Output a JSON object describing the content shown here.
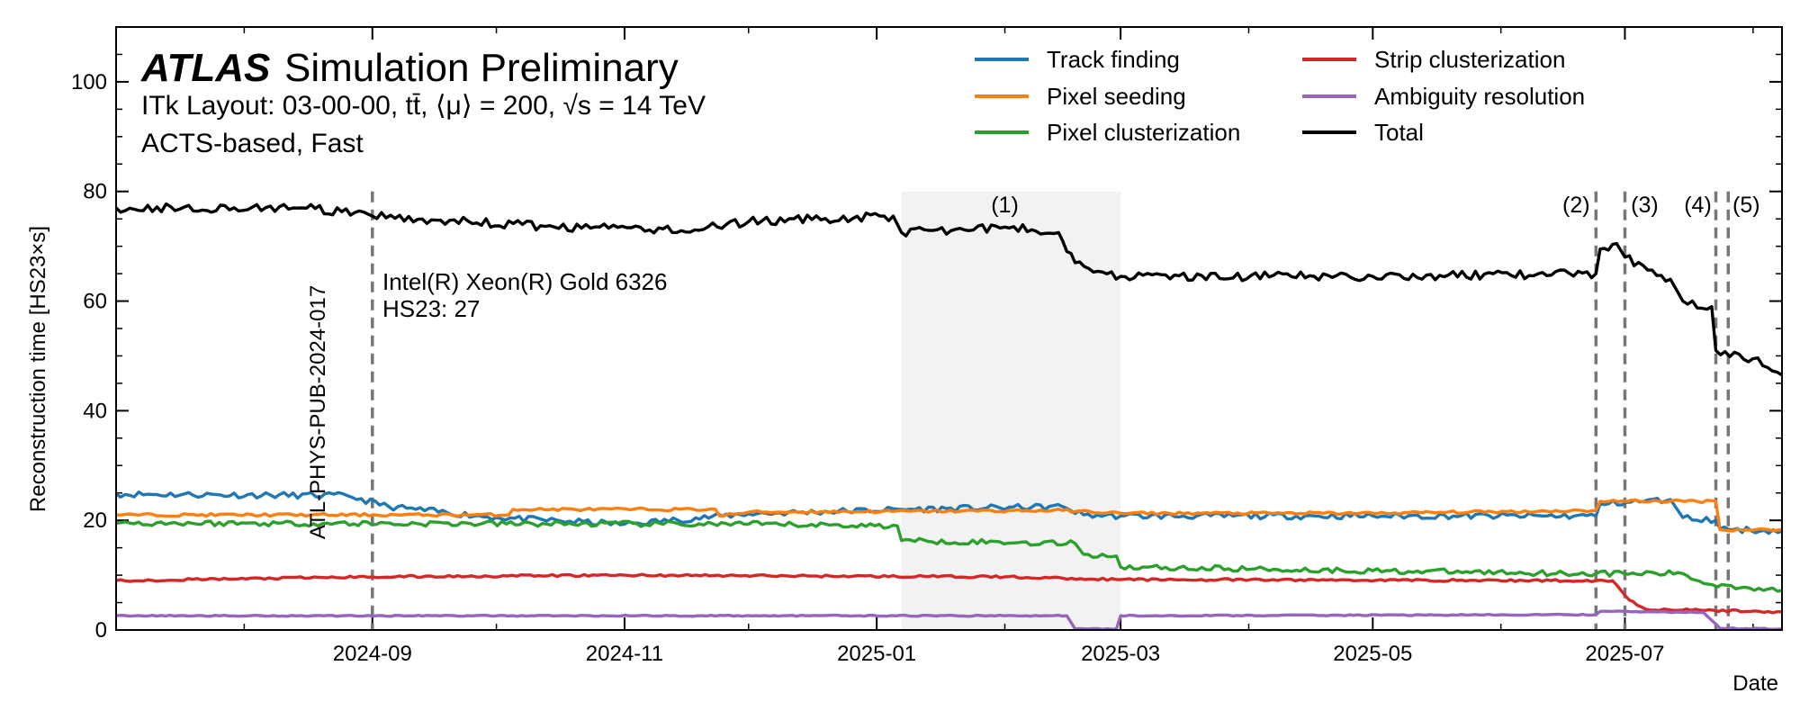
{
  "chart_data": {
    "type": "line",
    "experiment": "ATLAS",
    "status": "Simulation Preliminary",
    "info_line1": "ITk Layout: 03-00-00, tt̄, ⟨μ⟩ = 200, √s = 14 TeV",
    "info_line2": "ACTS-based, Fast",
    "xlabel": "Date",
    "ylabel": "Reconstruction time [HS23×s]",
    "xlim": [
      "2024-07-01",
      "2025-08-08"
    ],
    "ylim": [
      0,
      110
    ],
    "yticks": [
      0,
      20,
      40,
      60,
      80,
      100
    ],
    "xticks": [
      "2024-09",
      "2024-11",
      "2025-01",
      "2025-03",
      "2025-05",
      "2025-07"
    ],
    "x_tick_dates": [
      "2024-09-01",
      "2024-11-01",
      "2025-01-01",
      "2025-03-01",
      "2025-05-01",
      "2025-07-01"
    ],
    "legend_position": "top-right",
    "cpu_line1": "Intel(R) Xeon(R) Gold 6326",
    "cpu_line2": "HS23: 27",
    "reference_label": "ATL-PHYS-PUB-2024-017",
    "reference_date": "2024-09-01",
    "shaded_period": {
      "start": "2025-01-07",
      "end": "2025-03-01",
      "color": "#f2f2f2"
    },
    "markers": [
      {
        "label": "(1)",
        "date": "2025-02-01"
      },
      {
        "label": "(2)",
        "date": "2025-06-24"
      },
      {
        "label": "(3)",
        "date": "2025-07-01"
      },
      {
        "label": "(4)",
        "date": "2025-07-23"
      },
      {
        "label": "(5)",
        "date": "2025-07-26"
      }
    ],
    "series": [
      {
        "name": "Track finding",
        "color": "#1f77b4",
        "points": [
          [
            "2024-07-01",
            24.8
          ],
          [
            "2024-08-26",
            24.5
          ],
          [
            "2024-09-05",
            22.5
          ],
          [
            "2024-10-01",
            20.5
          ],
          [
            "2024-11-01",
            19.3
          ],
          [
            "2024-12-01",
            21.2
          ],
          [
            "2025-01-07",
            22.0
          ],
          [
            "2025-02-15",
            22.5
          ],
          [
            "2025-02-20",
            21.0
          ],
          [
            "2025-03-01",
            20.8
          ],
          [
            "2025-05-01",
            20.8
          ],
          [
            "2025-06-24",
            20.8
          ],
          [
            "2025-06-25",
            23.0
          ],
          [
            "2025-07-12",
            23.8
          ],
          [
            "2025-07-15",
            20.5
          ],
          [
            "2025-07-23",
            20.0
          ],
          [
            "2025-07-24",
            18.5
          ],
          [
            "2025-08-08",
            18.0
          ]
        ]
      },
      {
        "name": "Pixel seeding",
        "color": "#ff7f0e",
        "points": [
          [
            "2024-07-01",
            21.0
          ],
          [
            "2024-10-04",
            21.0
          ],
          [
            "2024-10-05",
            22.0
          ],
          [
            "2024-11-23",
            22.0
          ],
          [
            "2024-11-24",
            20.8
          ],
          [
            "2024-12-01",
            21.5
          ],
          [
            "2025-02-15",
            21.8
          ],
          [
            "2025-03-01",
            21.3
          ],
          [
            "2025-05-01",
            21.3
          ],
          [
            "2025-06-24",
            21.8
          ],
          [
            "2025-06-25",
            23.5
          ],
          [
            "2025-07-23",
            23.5
          ],
          [
            "2025-07-24",
            18.3
          ],
          [
            "2025-08-08",
            18.3
          ]
        ]
      },
      {
        "name": "Pixel clusterization",
        "color": "#2ca02c",
        "points": [
          [
            "2024-07-01",
            19.5
          ],
          [
            "2024-12-01",
            19.3
          ],
          [
            "2025-01-06",
            19.0
          ],
          [
            "2025-01-07",
            16.3
          ],
          [
            "2025-02-18",
            15.8
          ],
          [
            "2025-02-20",
            13.8
          ],
          [
            "2025-02-28",
            13.5
          ],
          [
            "2025-03-01",
            11.5
          ],
          [
            "2025-05-01",
            10.8
          ],
          [
            "2025-06-24",
            10.3
          ],
          [
            "2025-07-15",
            10.3
          ],
          [
            "2025-07-20",
            8.5
          ],
          [
            "2025-08-08",
            7.2
          ]
        ]
      },
      {
        "name": "Strip clusterization",
        "color": "#d62728",
        "points": [
          [
            "2024-07-01",
            9.0
          ],
          [
            "2024-09-01",
            9.7
          ],
          [
            "2024-11-01",
            10.0
          ],
          [
            "2025-02-01",
            9.7
          ],
          [
            "2025-03-01",
            9.2
          ],
          [
            "2025-06-24",
            9.0
          ],
          [
            "2025-06-28",
            9.0
          ],
          [
            "2025-07-02",
            5.5
          ],
          [
            "2025-07-06",
            3.8
          ],
          [
            "2025-08-08",
            3.3
          ]
        ]
      },
      {
        "name": "Ambiguity resolution",
        "color": "#9467bd",
        "points": [
          [
            "2024-07-01",
            2.6
          ],
          [
            "2025-02-16",
            2.6
          ],
          [
            "2025-02-18",
            0.2
          ],
          [
            "2025-02-28",
            0.2
          ],
          [
            "2025-03-01",
            2.6
          ],
          [
            "2025-06-24",
            2.8
          ],
          [
            "2025-06-25",
            3.4
          ],
          [
            "2025-07-20",
            3.2
          ],
          [
            "2025-07-24",
            0.3
          ],
          [
            "2025-08-08",
            0.2
          ]
        ]
      },
      {
        "name": "Total",
        "color": "#000000",
        "points": [
          [
            "2024-07-01",
            77.0
          ],
          [
            "2024-08-15",
            77.0
          ],
          [
            "2024-09-01",
            75.5
          ],
          [
            "2024-10-15",
            73.5
          ],
          [
            "2024-11-18",
            73.0
          ],
          [
            "2024-12-01",
            74.5
          ],
          [
            "2025-01-05",
            75.5
          ],
          [
            "2025-01-07",
            72.5
          ],
          [
            "2025-02-01",
            73.5
          ],
          [
            "2025-02-14",
            72.5
          ],
          [
            "2025-02-18",
            67.0
          ],
          [
            "2025-03-01",
            64.5
          ],
          [
            "2025-05-01",
            64.5
          ],
          [
            "2025-06-24",
            65.0
          ],
          [
            "2025-06-25",
            69.5
          ],
          [
            "2025-06-29",
            70.5
          ],
          [
            "2025-07-01",
            68.0
          ],
          [
            "2025-07-12",
            64.0
          ],
          [
            "2025-07-15",
            60.0
          ],
          [
            "2025-07-22",
            59.0
          ],
          [
            "2025-07-23",
            51.0
          ],
          [
            "2025-08-01",
            49.5
          ],
          [
            "2025-08-08",
            46.5
          ]
        ]
      }
    ]
  }
}
